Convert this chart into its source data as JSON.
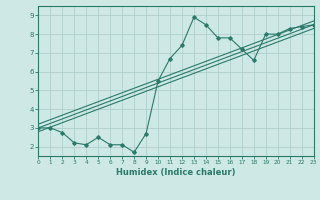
{
  "xlabel": "Humidex (Indice chaleur)",
  "xlim": [
    0,
    23
  ],
  "ylim": [
    1.5,
    9.5
  ],
  "xticks": [
    0,
    1,
    2,
    3,
    4,
    5,
    6,
    7,
    8,
    9,
    10,
    11,
    12,
    13,
    14,
    15,
    16,
    17,
    18,
    19,
    20,
    21,
    22,
    23
  ],
  "yticks": [
    2,
    3,
    4,
    5,
    6,
    7,
    8,
    9
  ],
  "bg_color": "#cde8e5",
  "grid_color": "#b0d0cc",
  "line_color": "#2a7a6a",
  "line1_x": [
    0,
    1,
    2,
    3,
    4,
    5,
    6,
    7,
    8,
    9,
    10,
    11,
    12,
    13,
    14,
    15,
    16,
    17,
    18,
    19,
    20,
    21,
    22,
    23
  ],
  "line1_y": [
    3.0,
    3.0,
    2.75,
    2.2,
    2.1,
    2.5,
    2.1,
    2.1,
    1.7,
    2.7,
    5.5,
    6.7,
    7.4,
    8.9,
    8.5,
    7.8,
    7.8,
    7.2,
    6.6,
    8.0,
    8.0,
    8.3,
    8.4,
    8.5
  ],
  "line2_x": [
    0,
    23
  ],
  "line2_y": [
    3.0,
    8.5
  ],
  "line3_x": [
    0,
    23
  ],
  "line3_y": [
    2.8,
    8.3
  ],
  "line4_x": [
    0,
    23
  ],
  "line4_y": [
    3.2,
    8.7
  ],
  "figsize": [
    3.2,
    2.0
  ],
  "dpi": 100
}
